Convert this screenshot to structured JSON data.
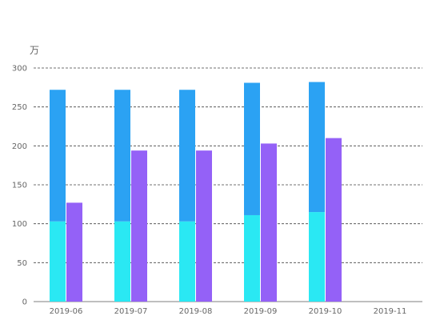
{
  "chart_data": {
    "type": "bar",
    "unit_label": "万",
    "categories": [
      "2019-06",
      "2019-07",
      "2019-08",
      "2019-09",
      "2019-10",
      "2019-11"
    ],
    "series": [
      {
        "stack": "a",
        "values": [
          103,
          103,
          103,
          111,
          115,
          null
        ],
        "color": "#2ae8f3"
      },
      {
        "stack": "a",
        "values": [
          169,
          169,
          169,
          170,
          167,
          null
        ],
        "color": "#2ba2f3"
      },
      {
        "stack": "b",
        "values": [
          127,
          194,
          194,
          203,
          210,
          null
        ],
        "color": "#9461f7"
      }
    ],
    "ylim": [
      0,
      300
    ],
    "y_ticks": [
      0,
      50,
      100,
      150,
      200,
      250,
      300
    ],
    "grid": true,
    "grid_style": "dashed",
    "legend": "none"
  }
}
